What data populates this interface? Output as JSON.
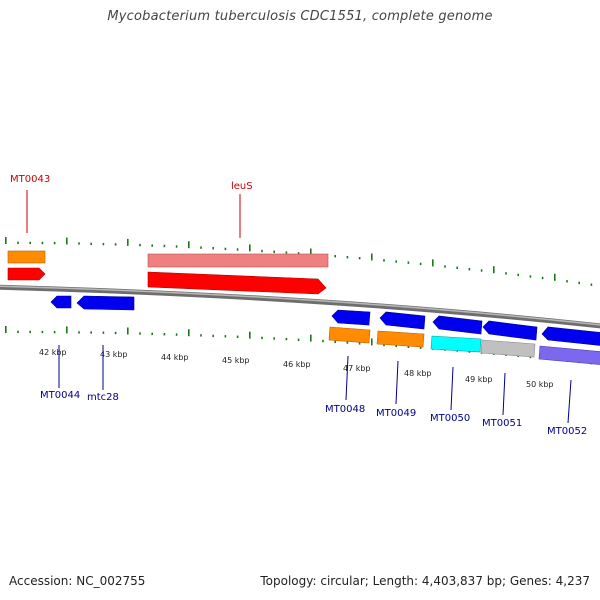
{
  "title": "Mycobacterium tuberculosis CDC1551, complete genome",
  "footer": {
    "accession": "Accession: NC_002755",
    "topology": "Topology: circular; Length: 4,403,837 bp; Genes: 4,237"
  },
  "colors": {
    "backbone": "#808080",
    "tick": "#1a7a1a",
    "red_gene": "#ff0000",
    "pink_gene": "#f08080",
    "orange_gene": "#ff8c00",
    "blue_gene": "#0000ee",
    "cyan_gene": "#00ffff",
    "gray_gene": "#c0c0c0",
    "purple_gene": "#7b68ee",
    "label_red": "#cc0000",
    "label_blue": "#00008b"
  },
  "scale_labels": [
    "42 kbp",
    "43 kbp",
    "44 kbp",
    "45 kbp",
    "46 kbp",
    "47 kbp",
    "48 kbp",
    "49 kbp",
    "50 kbp"
  ],
  "gene_labels": {
    "forward": [
      {
        "name": "MT0043",
        "color": "label_red"
      },
      {
        "name": "leuS",
        "color": "label_red"
      }
    ],
    "reverse": [
      {
        "name": "MT0044",
        "color": "label_blue"
      },
      {
        "name": "mtc28",
        "color": "label_blue"
      },
      {
        "name": "MT0048",
        "color": "label_blue"
      },
      {
        "name": "MT0049",
        "color": "label_blue"
      },
      {
        "name": "MT0050",
        "color": "label_blue"
      },
      {
        "name": "MT0051",
        "color": "label_blue"
      },
      {
        "name": "MT0052",
        "color": "label_blue"
      }
    ]
  }
}
